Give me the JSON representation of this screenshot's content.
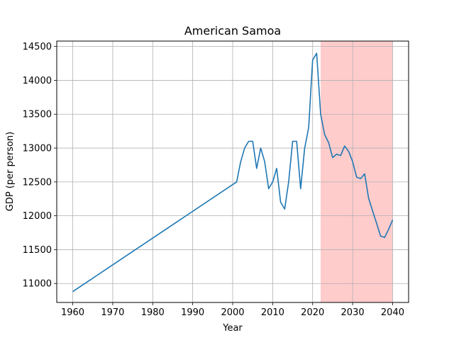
{
  "chart_data": {
    "type": "line",
    "title": "American Samoa",
    "xlabel": "Year",
    "ylabel": "GDP (per person)",
    "xlim": [
      1956,
      2044
    ],
    "ylim": [
      10720,
      14580
    ],
    "xticks": [
      1960,
      1970,
      1980,
      1990,
      2000,
      2010,
      2020,
      2030,
      2040
    ],
    "yticks": [
      11000,
      11500,
      12000,
      12500,
      13000,
      13500,
      14000,
      14500
    ],
    "grid": true,
    "line_color": "#1f77b4",
    "shaded_region": {
      "x_start": 2022,
      "x_end": 2040,
      "color": "#ff9999"
    },
    "series": [
      {
        "x": [
          1960,
          2001,
          2002,
          2003,
          2004,
          2005,
          2006,
          2007,
          2008,
          2009,
          2010,
          2011,
          2012,
          2013,
          2014,
          2015,
          2016,
          2017,
          2018,
          2019,
          2020,
          2021,
          2022,
          2023,
          2024,
          2025,
          2026,
          2027,
          2028,
          2029,
          2030,
          2031,
          2032,
          2033,
          2034,
          2035,
          2036,
          2037,
          2038,
          2039,
          2040
        ],
        "values": [
          10880,
          12500,
          12800,
          13000,
          13100,
          13100,
          12700,
          13000,
          12800,
          12400,
          12500,
          12700,
          12200,
          12100,
          12500,
          13100,
          13100,
          12400,
          13000,
          13300,
          14300,
          14400,
          13500,
          13200,
          13080,
          12860,
          12910,
          12890,
          13030,
          12950,
          12800,
          12570,
          12550,
          12620,
          12260,
          12070,
          11890,
          11700,
          11680,
          11800,
          11940
        ]
      }
    ]
  }
}
